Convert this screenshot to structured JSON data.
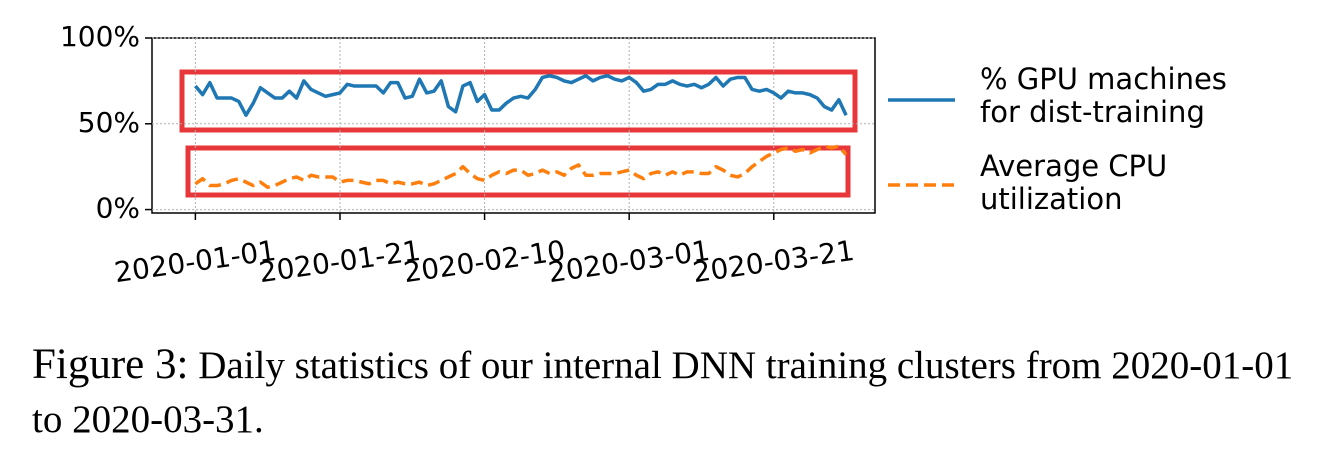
{
  "chart_data": {
    "type": "line",
    "x": [
      "2020-01-01",
      "2020-01-02",
      "2020-01-03",
      "2020-01-04",
      "2020-01-05",
      "2020-01-06",
      "2020-01-07",
      "2020-01-08",
      "2020-01-09",
      "2020-01-10",
      "2020-01-11",
      "2020-01-12",
      "2020-01-13",
      "2020-01-14",
      "2020-01-15",
      "2020-01-16",
      "2020-01-17",
      "2020-01-18",
      "2020-01-19",
      "2020-01-20",
      "2020-01-21",
      "2020-01-22",
      "2020-01-23",
      "2020-01-24",
      "2020-01-25",
      "2020-01-26",
      "2020-01-27",
      "2020-01-28",
      "2020-01-29",
      "2020-01-30",
      "2020-01-31",
      "2020-02-01",
      "2020-02-02",
      "2020-02-03",
      "2020-02-04",
      "2020-02-05",
      "2020-02-06",
      "2020-02-07",
      "2020-02-08",
      "2020-02-09",
      "2020-02-10",
      "2020-02-11",
      "2020-02-12",
      "2020-02-13",
      "2020-02-14",
      "2020-02-15",
      "2020-02-16",
      "2020-02-17",
      "2020-02-18",
      "2020-02-19",
      "2020-02-20",
      "2020-02-21",
      "2020-02-22",
      "2020-02-23",
      "2020-02-24",
      "2020-02-25",
      "2020-02-26",
      "2020-02-27",
      "2020-02-28",
      "2020-02-29",
      "2020-03-01",
      "2020-03-02",
      "2020-03-03",
      "2020-03-04",
      "2020-03-05",
      "2020-03-06",
      "2020-03-07",
      "2020-03-08",
      "2020-03-09",
      "2020-03-10",
      "2020-03-11",
      "2020-03-12",
      "2020-03-13",
      "2020-03-14",
      "2020-03-15",
      "2020-03-16",
      "2020-03-17",
      "2020-03-18",
      "2020-03-19",
      "2020-03-20",
      "2020-03-21",
      "2020-03-22",
      "2020-03-23",
      "2020-03-24",
      "2020-03-25",
      "2020-03-26",
      "2020-03-27",
      "2020-03-28",
      "2020-03-29",
      "2020-03-30",
      "2020-03-31"
    ],
    "series": [
      {
        "name": "% GPU machines for dist-training",
        "color": "#1f77b4",
        "dash": false,
        "values": [
          72,
          67,
          74,
          65,
          65,
          65,
          63,
          55,
          62,
          71,
          68,
          65,
          65,
          69,
          65,
          75,
          70,
          68,
          66,
          67,
          68,
          73,
          72,
          72,
          72,
          72,
          68,
          74,
          74,
          65,
          66,
          76,
          68,
          69,
          75,
          60,
          57,
          72,
          74,
          63,
          67,
          58,
          58,
          62,
          65,
          66,
          65,
          70,
          77,
          78,
          77,
          75,
          74,
          76,
          78,
          75,
          77,
          78,
          76,
          75,
          77,
          74,
          69,
          70,
          73,
          73,
          75,
          73,
          72,
          73,
          71,
          73,
          77,
          72,
          76,
          77,
          77,
          70,
          69,
          70,
          68,
          65,
          69,
          68,
          68,
          67,
          65,
          60,
          58,
          64,
          55
        ]
      },
      {
        "name": "Average CPU utilization",
        "color": "#ff7f0e",
        "dash": true,
        "values": [
          15,
          18,
          14,
          14,
          15,
          17,
          18,
          16,
          14,
          16,
          13,
          14,
          16,
          18,
          19,
          17,
          20,
          19,
          19,
          19,
          16,
          17,
          17,
          16,
          15,
          17,
          17,
          15,
          16,
          15,
          15,
          16,
          14,
          15,
          17,
          19,
          21,
          25,
          21,
          18,
          17,
          20,
          22,
          21,
          23,
          23,
          20,
          21,
          23,
          21,
          22,
          20,
          24,
          26,
          20,
          20,
          21,
          21,
          21,
          22,
          23,
          20,
          18,
          21,
          22,
          20,
          22,
          20,
          22,
          22,
          21,
          21,
          25,
          23,
          20,
          19,
          21,
          25,
          28,
          31,
          33,
          35,
          36,
          34,
          35,
          33,
          35,
          37,
          36,
          37,
          32
        ]
      }
    ],
    "xlim": [
      "2019-12-26",
      "2020-04-04"
    ],
    "xticks": [
      "2020-01-01",
      "2020-01-21",
      "2020-02-10",
      "2020-03-01",
      "2020-03-21"
    ],
    "ylim": [
      -2,
      100
    ],
    "yticks": [
      {
        "value": 0,
        "label": "0%"
      },
      {
        "value": 50,
        "label": "50%"
      },
      {
        "value": 100,
        "label": "100%"
      }
    ],
    "grid": true,
    "legend": "right",
    "caption": {
      "label": "Figure 3:",
      "text": "Daily statistics of our internal DNN training clusters from 2020-01-01 to 2020-03-31."
    }
  }
}
